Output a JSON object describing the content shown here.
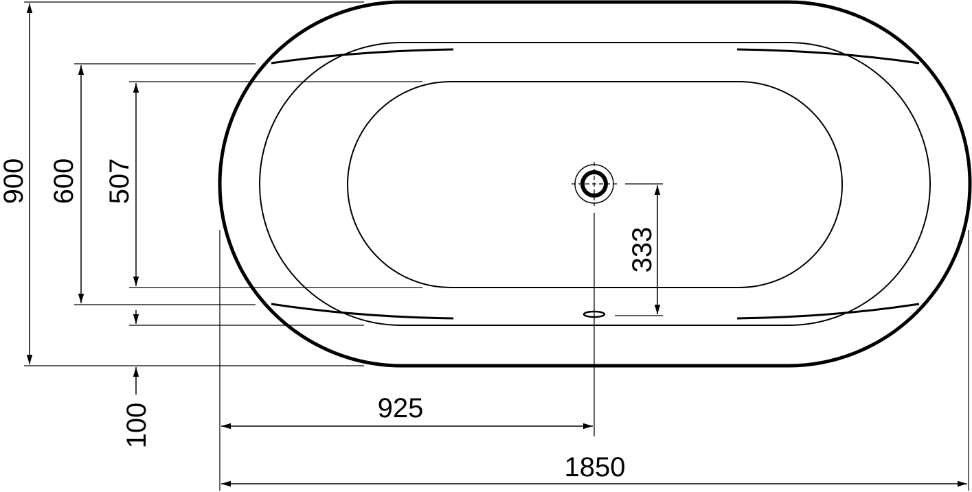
{
  "drawing": {
    "dimensions": {
      "overall_width": "900",
      "inner_rim_width": "600",
      "basin_width": "507",
      "bottom_offset": "100",
      "drain_offset": "333",
      "drain_center": "925",
      "overall_length": "1850"
    }
  }
}
